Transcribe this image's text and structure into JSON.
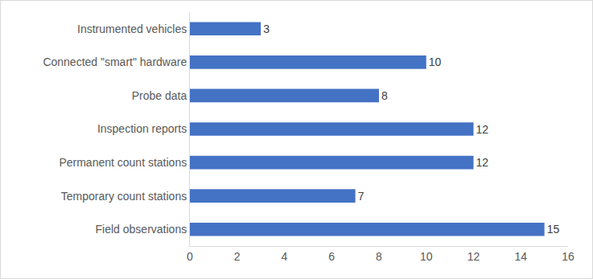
{
  "chart_data": {
    "type": "bar",
    "orientation": "horizontal",
    "categories": [
      "Field observations",
      "Temporary count stations",
      "Permanent count stations",
      "Inspection reports",
      "Probe data",
      "Connected \"smart\" hardware",
      "Instrumented vehicles"
    ],
    "values": [
      15,
      7,
      12,
      12,
      8,
      10,
      3
    ],
    "color": "#4472c4",
    "xlim": [
      0,
      16
    ],
    "xticks": [
      0,
      2,
      4,
      6,
      8,
      10,
      12,
      14,
      16
    ],
    "grid": false,
    "data_labels": true
  }
}
